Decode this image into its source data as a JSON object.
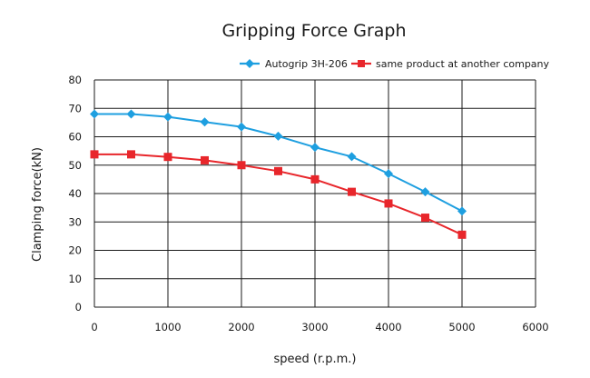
{
  "chart_data": {
    "type": "line",
    "title": "Gripping Force Graph",
    "xlabel": "speed (r.p.m.)",
    "ylabel": "Clamping force(kN)",
    "xlim": [
      0,
      6000
    ],
    "ylim": [
      0,
      80
    ],
    "x_ticks": [
      0,
      1000,
      2000,
      3000,
      4000,
      5000,
      6000
    ],
    "y_ticks": [
      0,
      10,
      20,
      30,
      40,
      50,
      60,
      70,
      80
    ],
    "grid": true,
    "legend_position": "top-right",
    "series": [
      {
        "name": "Autogrip 3H-206",
        "color": "#1e9fe0",
        "marker": "diamond",
        "x": [
          0,
          500,
          1000,
          1500,
          2000,
          2500,
          3000,
          3500,
          4000,
          4500,
          5000
        ],
        "y": [
          68,
          68,
          67,
          65.2,
          63.5,
          60.2,
          56.3,
          53,
          47,
          40.6,
          33.8
        ]
      },
      {
        "name": "same product at another company",
        "color": "#e8262b",
        "marker": "square",
        "x": [
          0,
          500,
          1000,
          1500,
          2000,
          2500,
          3000,
          3500,
          4000,
          4500,
          5000
        ],
        "y": [
          53.8,
          53.8,
          52.9,
          51.7,
          50,
          47.9,
          45,
          40.6,
          36.5,
          31.5,
          25.5
        ]
      }
    ]
  }
}
